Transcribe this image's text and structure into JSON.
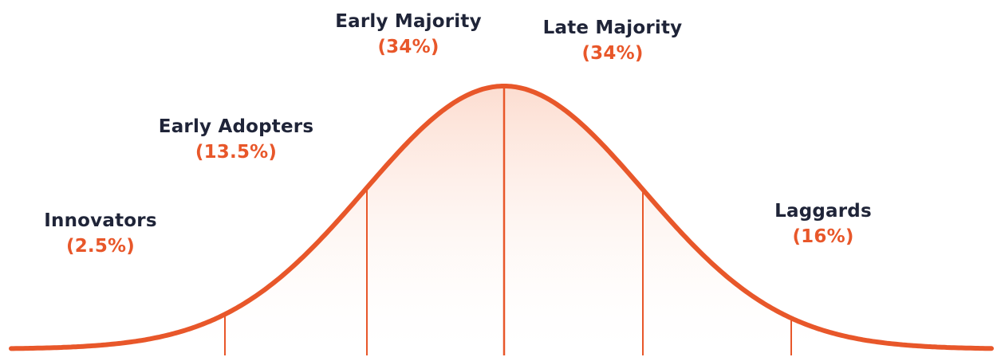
{
  "colors": {
    "curve": "#e8572a",
    "fill_top": "#fcd9cb",
    "fill_bottom": "#ffffff",
    "text": "#1f2438"
  },
  "segments": [
    {
      "name": "Innovators",
      "share": "(2.5%)"
    },
    {
      "name": "Early Adopters",
      "share": "(13.5%)"
    },
    {
      "name": "Early Majority",
      "share": "(34%)"
    },
    {
      "name": "Late Majority",
      "share": "(34%)"
    },
    {
      "name": "Laggards",
      "share": "(16%)"
    }
  ]
}
